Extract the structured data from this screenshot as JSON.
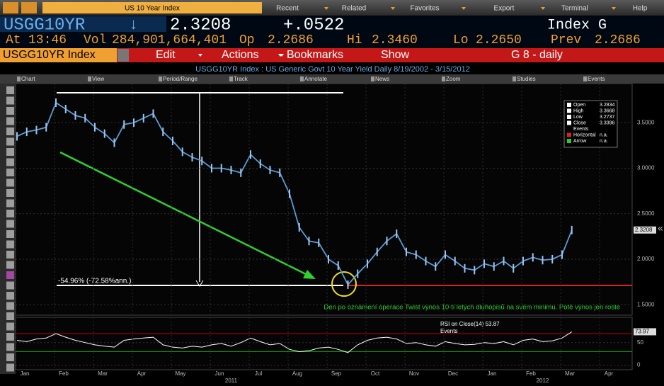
{
  "toolbar": {
    "security": "US 10 Year Index",
    "menus": [
      "Recent",
      "Related",
      "Favorites",
      "Export",
      "Terminal",
      "Help"
    ]
  },
  "quote": {
    "ticker": "USGG10YR",
    "direction": "↓",
    "last": "2.3208",
    "change": "+.0522",
    "exchange": "Index G",
    "fields": [
      [
        "At",
        "13:46"
      ],
      [
        "Vol",
        "284,901,664,401"
      ],
      [
        "Op",
        "2.2686"
      ],
      [
        "Hi",
        "2.3460"
      ],
      [
        "Lo",
        "2.2650"
      ],
      [
        "Prev",
        "2.2686"
      ]
    ]
  },
  "menu": {
    "security": "USGG10YR Index",
    "items": [
      "Edit",
      "Actions",
      "Bookmarks",
      "Show"
    ],
    "page": "G 8 - daily"
  },
  "tabs": [
    "Chart",
    "View",
    "Period/Range",
    "Track",
    "Annotate",
    "News",
    "Zoom",
    "Studies",
    "Events"
  ],
  "chart_data": [
    {
      "type": "line",
      "title": "USGG10YR Index  :  US Generic Govt 10 Year Yield   Daily  8/19/2002 - 3/15/2012",
      "categories": [
        "Jan",
        null,
        null,
        null,
        "Feb",
        null,
        null,
        null,
        "Mar",
        null,
        null,
        null,
        "Apr",
        null,
        null,
        null,
        "May",
        null,
        null,
        null,
        "Jun",
        null,
        null,
        null,
        "Jul",
        null,
        null,
        null,
        "Aug",
        null,
        null,
        null,
        "Sep",
        null,
        null,
        null,
        "Oct",
        null,
        null,
        null,
        "Nov",
        null,
        null,
        null,
        "Dec",
        null,
        null,
        null,
        "Jan",
        null,
        null,
        null,
        "Feb",
        null,
        null,
        null,
        "Mar",
        null,
        null,
        null,
        "Apr",
        null,
        null,
        null
      ],
      "year_labels": [
        "2011",
        "2012"
      ],
      "color": "#5b9bd5",
      "values": [
        3.35,
        3.4,
        3.42,
        3.45,
        3.72,
        3.65,
        3.58,
        3.55,
        3.45,
        3.38,
        3.28,
        3.48,
        3.5,
        3.55,
        3.6,
        3.4,
        3.3,
        3.18,
        3.12,
        3.08,
        3.0,
        3.0,
        2.98,
        2.95,
        3.15,
        3.05,
        2.98,
        2.95,
        2.72,
        2.35,
        2.2,
        2.18,
        2.0,
        1.93,
        1.72,
        1.84,
        1.95,
        2.08,
        2.2,
        2.28,
        2.08,
        2.05,
        1.98,
        1.92,
        2.05,
        1.98,
        1.9,
        1.88,
        1.95,
        1.92,
        1.98,
        1.9,
        1.98,
        2.02,
        1.99,
        2.0,
        2.05,
        2.32,
        null,
        null,
        null,
        null,
        null,
        null
      ],
      "ylim": [
        1.385,
        3.93
      ],
      "yticks": [
        {
          "value": 1.5,
          "label": "1.5000"
        },
        {
          "value": 2,
          "label": "2.0000"
        },
        {
          "value": 2.5,
          "label": "2.5000"
        },
        {
          "value": 3,
          "label": "3.0000"
        },
        {
          "value": 3.5,
          "label": "3.5000"
        }
      ],
      "grid": true,
      "last_value": 2.3208,
      "legend_position": "top-right",
      "legend_items": [
        {
          "label": "Open",
          "value": 3.2834,
          "color": "#ffffff"
        },
        {
          "label": "High",
          "value": 3.3668,
          "color": "#ffffff"
        },
        {
          "label": "Low",
          "value": 3.2737,
          "color": "#ffffff"
        },
        {
          "label": "Close",
          "value": 3.3396,
          "color": "#ffffff"
        },
        {
          "label": "Events"
        },
        {
          "label": "Horizontal",
          "value": "n.a.",
          "color": "#e02020"
        },
        {
          "label": "Arrow",
          "value": "n.a.",
          "color": "#20d020"
        }
      ],
      "annotations": [
        "-54.96% (-72.58%ann.)",
        "Den po oznámení operace Twist výnos 10-ti letých dluhopisů na svém minimu. Potě výnos jen roste"
      ]
    },
    {
      "type": "line",
      "title": "RSI on Close(14) 53.87",
      "events_label": "Events",
      "color": "#ffffff",
      "values": [
        55,
        52,
        58,
        60,
        70,
        62,
        55,
        50,
        45,
        42,
        40,
        55,
        58,
        60,
        62,
        45,
        40,
        38,
        42,
        40,
        45,
        48,
        42,
        50,
        60,
        52,
        45,
        48,
        35,
        30,
        32,
        38,
        40,
        35,
        28,
        45,
        55,
        60,
        62,
        58,
        48,
        50,
        45,
        42,
        52,
        48,
        45,
        46,
        50,
        48,
        52,
        45,
        55,
        58,
        52,
        54,
        60,
        73.97,
        null,
        null,
        null,
        null,
        null,
        null
      ],
      "ylim": [
        -10,
        106
      ],
      "yticks": [
        0,
        50
      ],
      "last_value": 73.97,
      "hlines": [
        {
          "value": 70,
          "color": "#c00000"
        },
        {
          "value": 30,
          "color": "#00a000"
        }
      ]
    }
  ]
}
